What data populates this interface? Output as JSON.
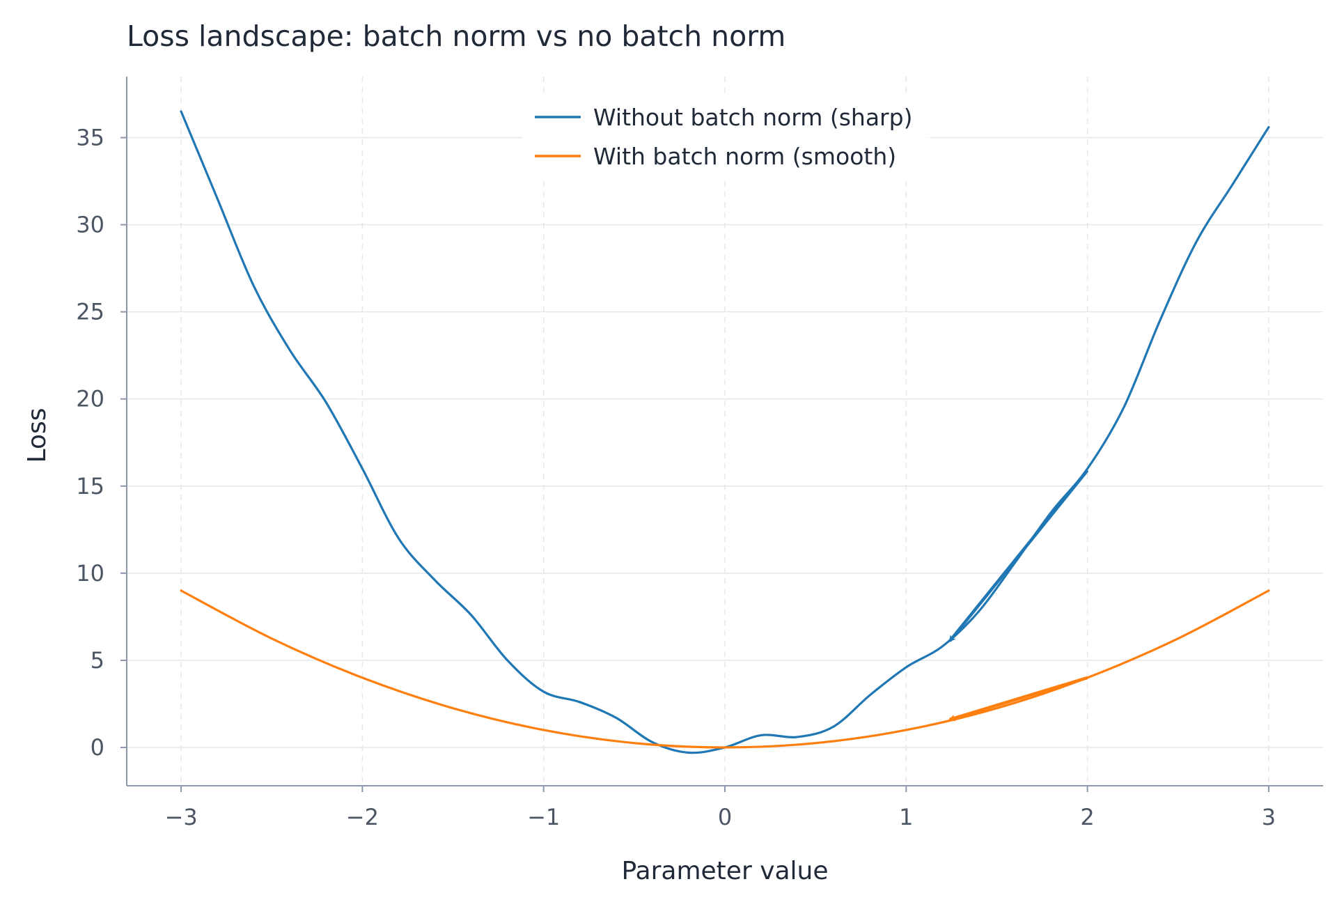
{
  "chart_data": {
    "type": "line",
    "title": "Loss landscape: batch norm vs no batch norm",
    "xlabel": "Parameter value",
    "ylabel": "Loss",
    "xlim": [
      -3.3,
      3.3
    ],
    "ylim": [
      -2.2,
      38.5
    ],
    "xticks": [
      -3,
      -2,
      -1,
      0,
      1,
      2,
      3
    ],
    "xtick_labels": [
      "−3",
      "−2",
      "−1",
      "0",
      "1",
      "2",
      "3"
    ],
    "yticks": [
      0,
      5,
      10,
      15,
      20,
      25,
      30,
      35
    ],
    "ytick_labels": [
      "0",
      "5",
      "10",
      "15",
      "20",
      "25",
      "30",
      "35"
    ],
    "grid": true,
    "legend_position": "top-center",
    "series": [
      {
        "name": "Without batch norm (sharp)",
        "color": "#1f77b4",
        "x": [
          -3.0,
          -2.8,
          -2.6,
          -2.4,
          -2.2,
          -2.0,
          -1.8,
          -1.6,
          -1.4,
          -1.2,
          -1.0,
          -0.8,
          -0.6,
          -0.4,
          -0.2,
          0.0,
          0.2,
          0.4,
          0.6,
          0.8,
          1.0,
          1.2,
          1.4,
          1.6,
          1.8,
          2.0,
          2.2,
          2.4,
          2.6,
          2.8,
          3.0
        ],
        "y": [
          36.5,
          31.5,
          26.5,
          22.8,
          19.8,
          16.0,
          12.0,
          9.6,
          7.6,
          5.0,
          3.2,
          2.6,
          1.7,
          0.3,
          -0.3,
          0.0,
          0.7,
          0.6,
          1.2,
          3.0,
          4.6,
          5.8,
          7.8,
          10.6,
          13.5,
          16.0,
          19.5,
          24.5,
          29.0,
          32.3,
          35.6
        ]
      },
      {
        "name": "With batch norm (smooth)",
        "color": "#ff7f0e",
        "x": [
          -3.0,
          -2.5,
          -2.0,
          -1.5,
          -1.0,
          -0.5,
          0.0,
          0.5,
          1.0,
          1.5,
          2.0,
          2.5,
          3.0
        ],
        "y": [
          9.0,
          6.25,
          4.0,
          2.25,
          1.0,
          0.25,
          0.0,
          0.25,
          1.0,
          2.25,
          4.0,
          6.25,
          9.0
        ]
      }
    ],
    "annotations": [
      {
        "type": "arrow",
        "series": "Without batch norm (sharp)",
        "color": "#1f77b4",
        "from": [
          2.0,
          15.9
        ],
        "to": [
          1.24,
          6.1
        ]
      },
      {
        "type": "arrow",
        "series": "With batch norm (smooth)",
        "color": "#ff7f0e",
        "from": [
          2.0,
          4.0
        ],
        "to": [
          1.24,
          1.6
        ]
      }
    ]
  }
}
